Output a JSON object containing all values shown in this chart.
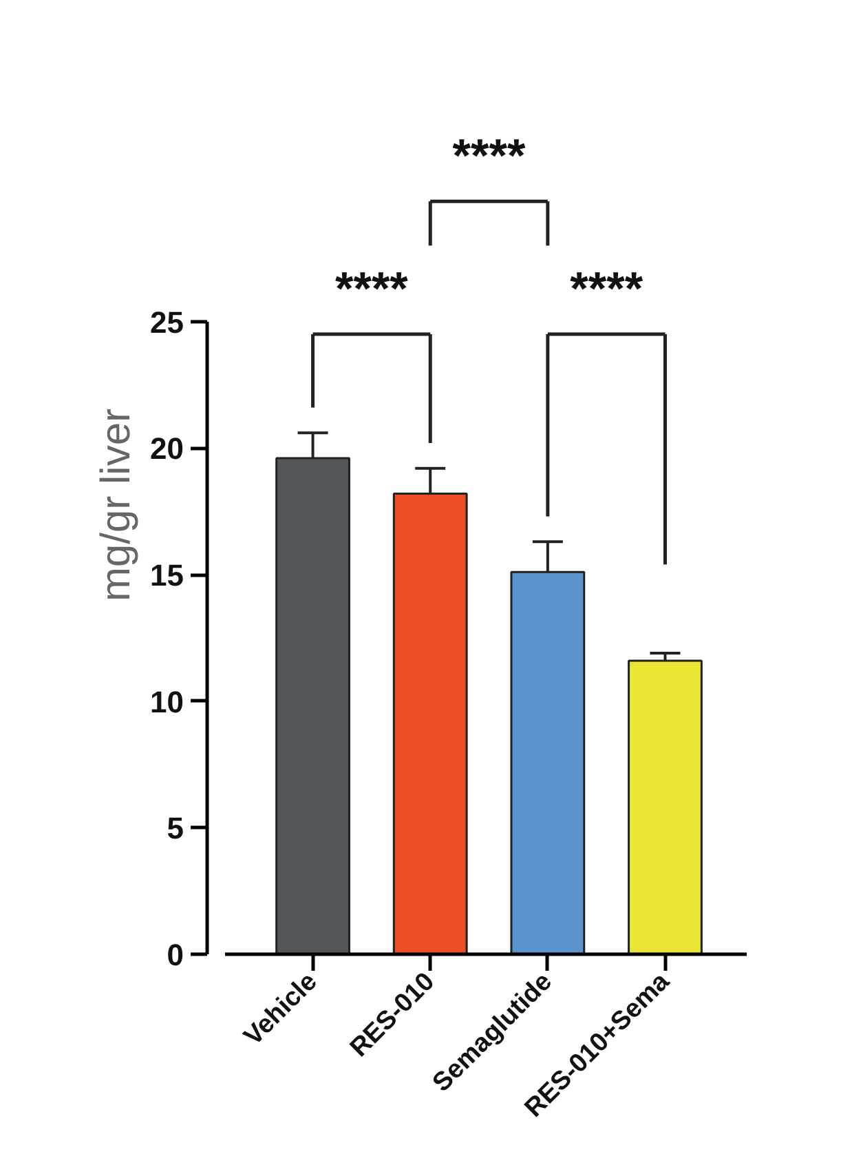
{
  "chart_data": {
    "type": "bar",
    "ylabel": "mg/gr liver",
    "categories": [
      "Vehicle",
      "RES-010",
      "Semaglutide",
      "RES-010+Sema"
    ],
    "values": [
      19.6,
      18.2,
      15.1,
      11.6
    ],
    "errors": [
      1.0,
      1.0,
      1.2,
      0.3
    ],
    "colors": [
      "#545759",
      "#ee5025",
      "#5b93cc",
      "#eae634"
    ],
    "ylim": [
      0,
      25
    ],
    "yticks": [
      0,
      5,
      10,
      15,
      20,
      25
    ],
    "grid": false,
    "annotations": [
      "****",
      "****",
      "****"
    ]
  }
}
